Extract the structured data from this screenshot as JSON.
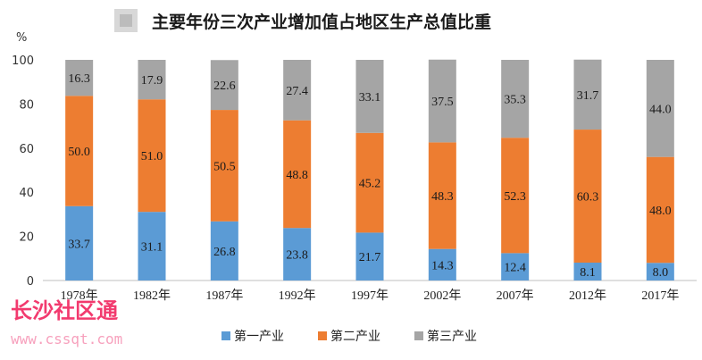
{
  "chart_data": {
    "type": "bar",
    "stacked": true,
    "title": "主要年份三次产业增加值占地区生产总值比重",
    "ylabel": "%",
    "ylim": [
      0,
      100
    ],
    "yticks": [
      0,
      20,
      40,
      60,
      80,
      100
    ],
    "grid": false,
    "legend_position": "bottom",
    "categories": [
      "1978年",
      "1982年",
      "1987年",
      "1992年",
      "1997年",
      "2002年",
      "2007年",
      "2012年",
      "2017年"
    ],
    "series": [
      {
        "name": "第一产业",
        "color": "#5b9bd5",
        "values": [
          33.7,
          31.1,
          26.8,
          23.8,
          21.7,
          14.3,
          12.4,
          8.1,
          8.0
        ]
      },
      {
        "name": "第二产业",
        "color": "#ed7d31",
        "values": [
          50.0,
          51.0,
          50.5,
          48.8,
          45.2,
          48.3,
          52.3,
          60.3,
          48.0
        ]
      },
      {
        "name": "第三产业",
        "color": "#a5a5a5",
        "values": [
          16.3,
          17.9,
          22.6,
          27.4,
          33.1,
          37.5,
          35.3,
          31.7,
          44.0
        ]
      }
    ]
  },
  "watermark": {
    "text": "长沙社区通",
    "url": "www.cssqt.com"
  }
}
